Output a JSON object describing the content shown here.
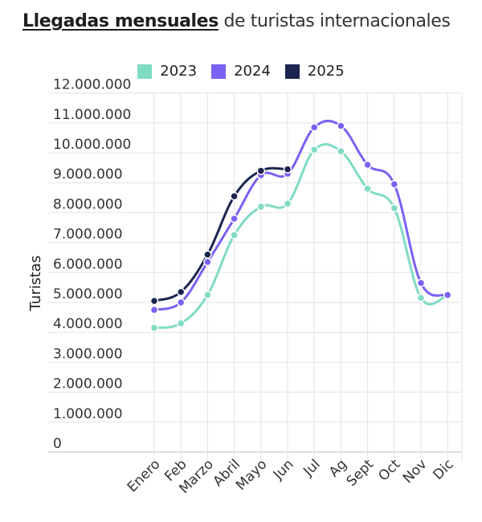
{
  "header": {
    "title_bold": "Llegadas mensuales",
    "title_rest": "de turistas internacionales"
  },
  "chart_data": {
    "type": "line",
    "title": "Llegadas mensuales de turistas internacionales",
    "ylabel": "Turistas",
    "xlabel": "",
    "ylim": [
      0,
      12000000
    ],
    "ytick_values": [
      0,
      1000000,
      2000000,
      3000000,
      4000000,
      5000000,
      6000000,
      7000000,
      8000000,
      9000000,
      10000000,
      11000000,
      12000000
    ],
    "ytick_labels": [
      "0",
      "1.000.000",
      "2.000.000",
      "3.000.000",
      "4.000.000",
      "5.000.000",
      "6.000.000",
      "7.000.000",
      "8.000.000",
      "9.000.000",
      "10.000.000",
      "11.000.000",
      "12.000.000"
    ],
    "categories": [
      "Enero",
      "Feb",
      "Marzo",
      "Abril",
      "Mayo",
      "Jun",
      "Jul",
      "Ag",
      "Sept",
      "Oct",
      "Nov",
      "Dic"
    ],
    "grid": true,
    "legend_position": "top-center",
    "series": [
      {
        "name": "2023",
        "color": "#7fdbc4",
        "values": [
          4150000,
          4300000,
          5250000,
          7250000,
          8200000,
          8300000,
          10100000,
          10050000,
          8800000,
          8150000,
          5150000,
          5250000
        ]
      },
      {
        "name": "2024",
        "color": "#7b61f5",
        "values": [
          4750000,
          5000000,
          6350000,
          7800000,
          9250000,
          9300000,
          10850000,
          10900000,
          9600000,
          8950000,
          5650000,
          5250000
        ]
      },
      {
        "name": "2025",
        "color": "#1c2550",
        "values": [
          5050000,
          5350000,
          6600000,
          8550000,
          9400000,
          9450000,
          null,
          null,
          null,
          null,
          null,
          null
        ]
      }
    ]
  }
}
